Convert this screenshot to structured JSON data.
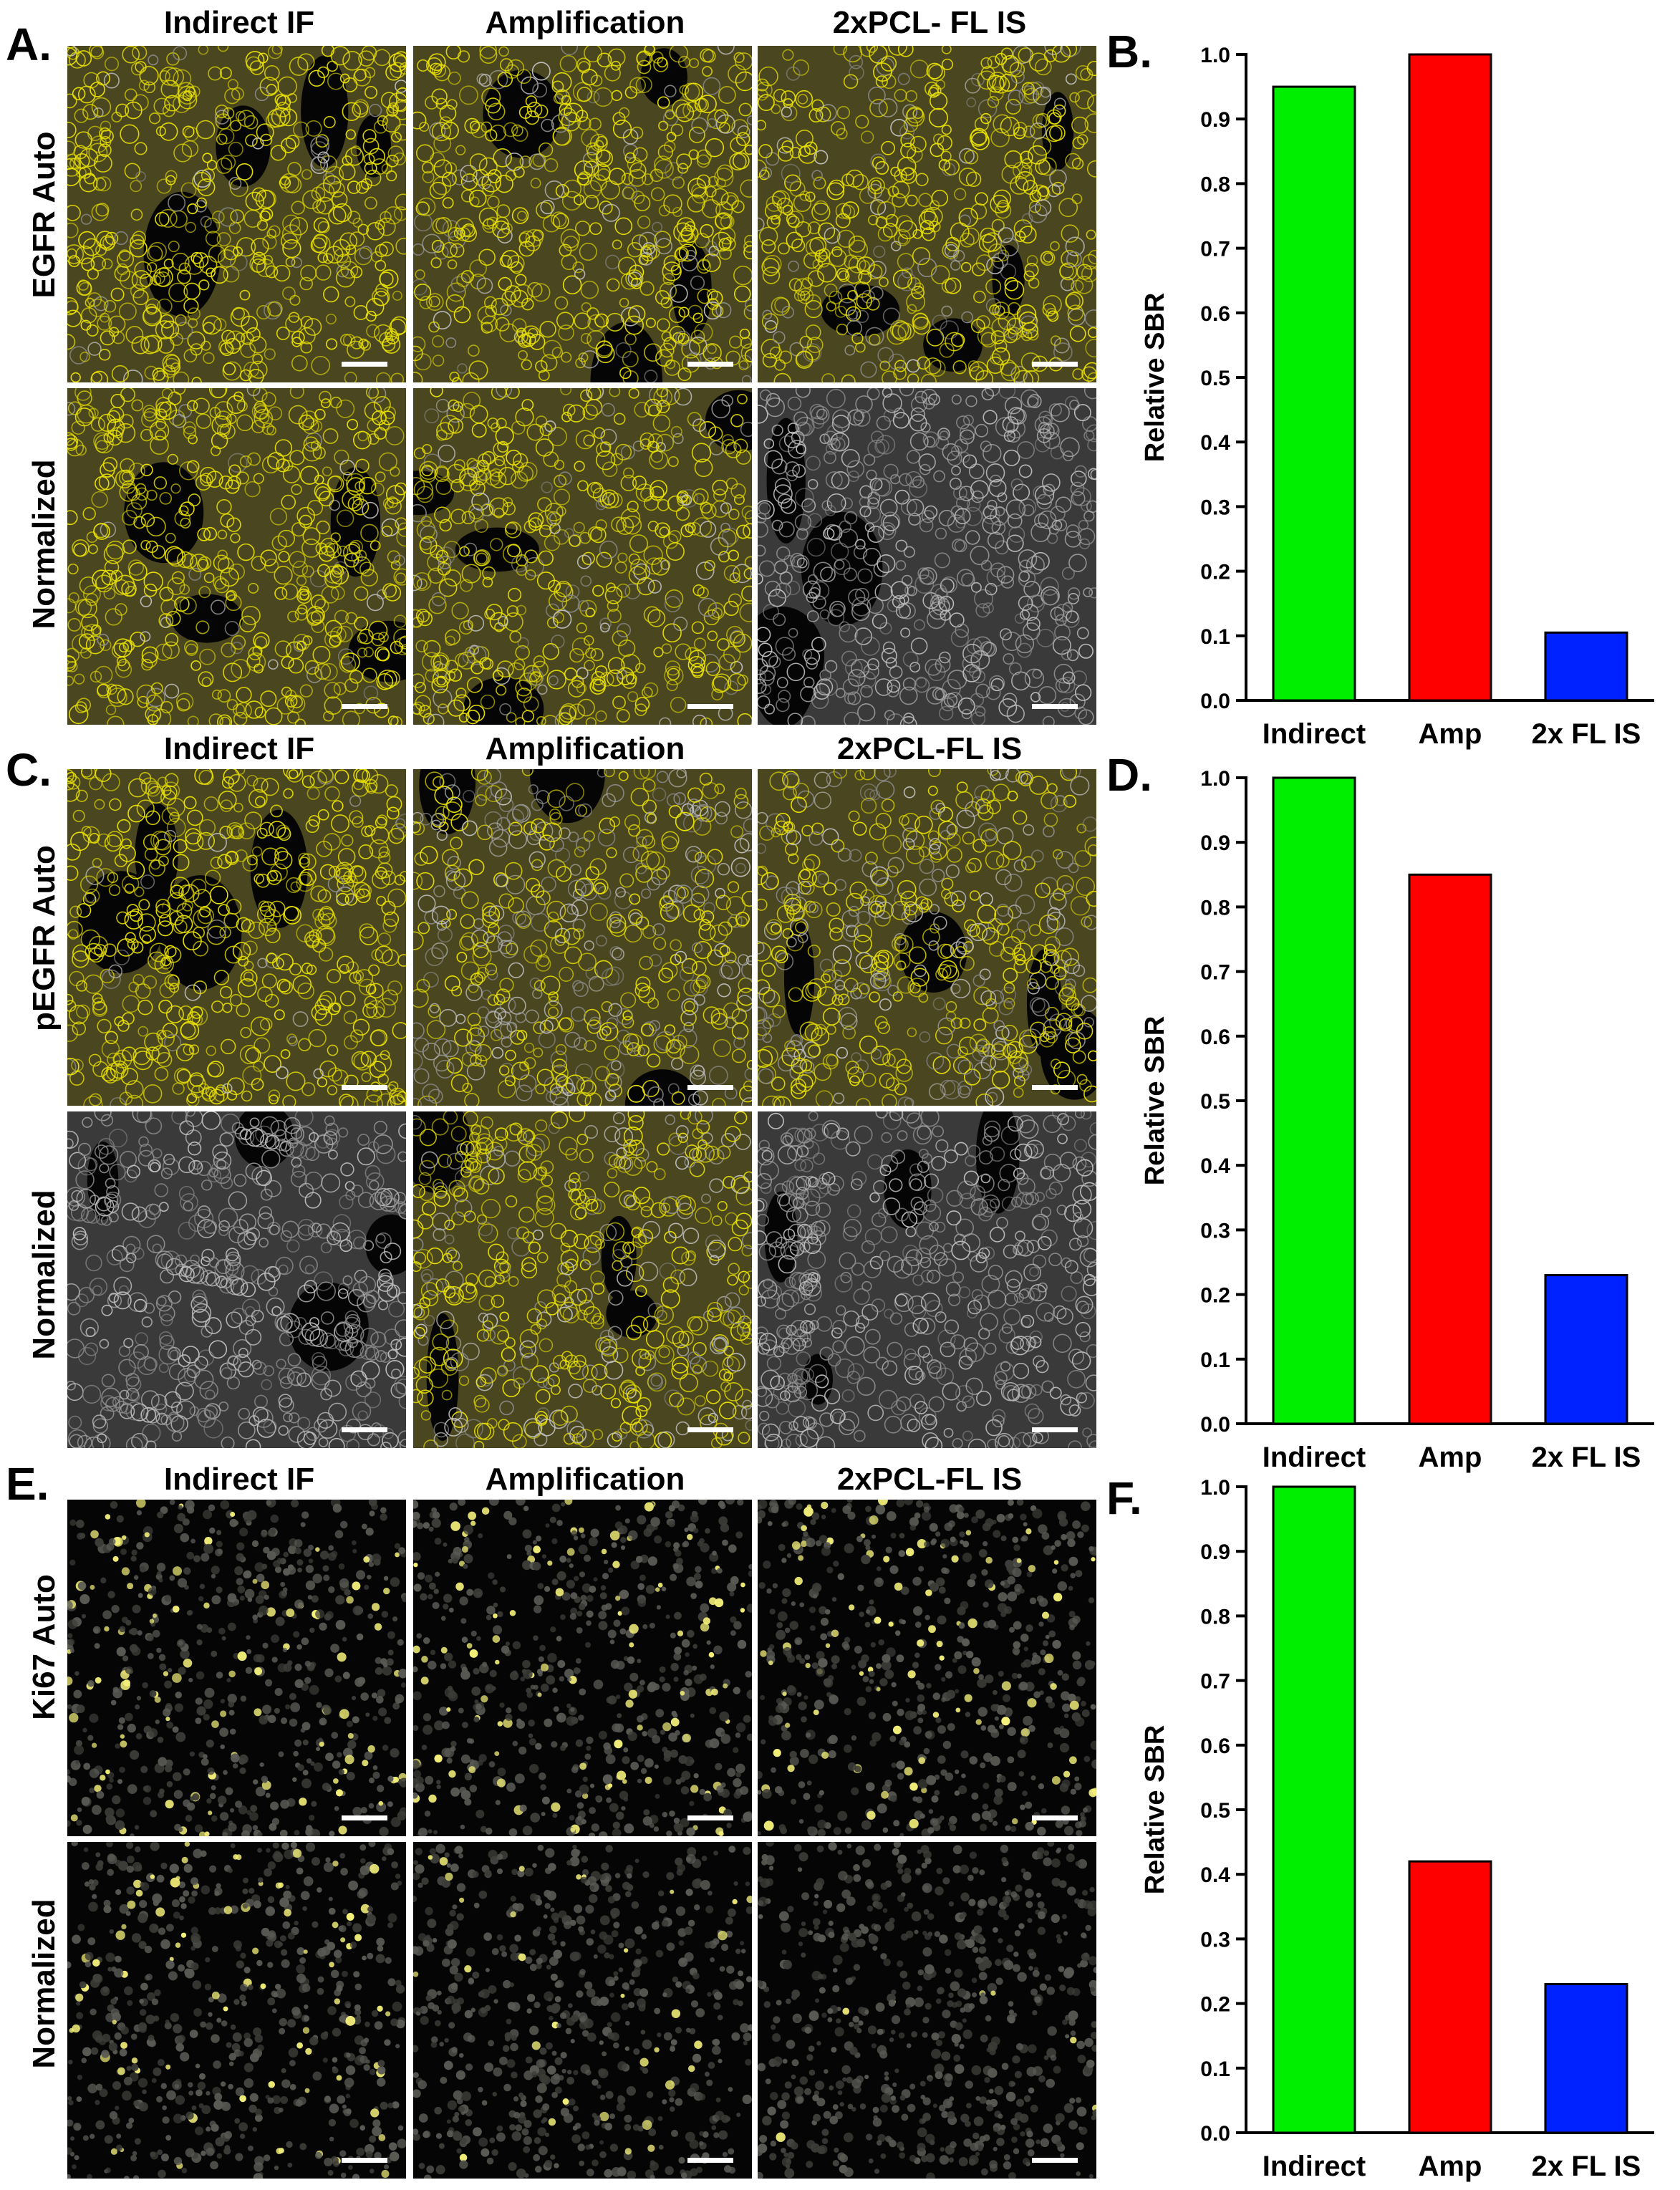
{
  "panel_letters": [
    "A.",
    "B.",
    "C.",
    "D.",
    "E.",
    "F."
  ],
  "column_titles": {
    "A": [
      "Indirect IF",
      "Amplification",
      "2xPCL- FL IS"
    ],
    "C": [
      "Indirect IF",
      "Amplification",
      "2xPCL-FL IS"
    ],
    "E": [
      "Indirect IF",
      "Amplification",
      "2xPCL-FL IS"
    ]
  },
  "row_labels": {
    "A": [
      "EGFR Auto",
      "Normalized"
    ],
    "C": [
      "pEGFR Auto",
      "Normalized"
    ],
    "E": [
      "Ki67 Auto",
      "Normalized"
    ]
  },
  "micrographs": {
    "A": [
      [
        {
          "style": "membrane",
          "tint": 0.95,
          "seed": 11
        },
        {
          "style": "membrane",
          "tint": 0.85,
          "seed": 12
        },
        {
          "style": "membrane",
          "tint": 0.8,
          "seed": 13
        }
      ],
      [
        {
          "style": "membrane",
          "tint": 0.95,
          "seed": 14
        },
        {
          "style": "membrane",
          "tint": 0.8,
          "seed": 15
        },
        {
          "style": "membrane",
          "tint": 0.0,
          "seed": 16
        }
      ]
    ],
    "C": [
      [
        {
          "style": "membrane",
          "tint": 0.95,
          "seed": 21
        },
        {
          "style": "membrane",
          "tint": 0.55,
          "seed": 22
        },
        {
          "style": "membrane",
          "tint": 0.6,
          "seed": 23
        }
      ],
      [
        {
          "style": "membrane",
          "tint": 0.0,
          "seed": 24
        },
        {
          "style": "membrane",
          "tint": 0.7,
          "seed": 25
        },
        {
          "style": "membrane",
          "tint": 0.0,
          "seed": 26
        }
      ]
    ],
    "E": [
      [
        {
          "style": "nuclei",
          "tint": 0.55,
          "seed": 31
        },
        {
          "style": "nuclei",
          "tint": 0.5,
          "seed": 32
        },
        {
          "style": "nuclei",
          "tint": 0.5,
          "seed": 33
        }
      ],
      [
        {
          "style": "nuclei",
          "tint": 0.5,
          "seed": 34
        },
        {
          "style": "nuclei",
          "tint": 0.25,
          "seed": 35
        },
        {
          "style": "nuclei",
          "tint": 0.05,
          "seed": 36
        }
      ]
    ]
  },
  "colors": {
    "indirect": "#00ee00",
    "amp": "#ff0000",
    "fl_is": "#0022ff",
    "stain_yellow": "#e8e000"
  },
  "chart_data": [
    {
      "panel": "B",
      "type": "bar",
      "categories": [
        "Indirect",
        "Amp",
        "2x FL IS"
      ],
      "values": [
        0.95,
        1.0,
        0.105
      ],
      "ylabel": "Relative SBR",
      "ylim": [
        0,
        1.0
      ],
      "yticks": [
        "0.0",
        "0.1",
        "0.2",
        "0.3",
        "0.4",
        "0.5",
        "0.6",
        "0.7",
        "0.8",
        "0.9",
        "1.0"
      ]
    },
    {
      "panel": "D",
      "type": "bar",
      "categories": [
        "Indirect",
        "Amp",
        "2x FL IS"
      ],
      "values": [
        1.0,
        0.85,
        0.23
      ],
      "ylabel": "Relative SBR",
      "ylim": [
        0,
        1.0
      ],
      "yticks": [
        "0.0",
        "0.1",
        "0.2",
        "0.3",
        "0.4",
        "0.5",
        "0.6",
        "0.7",
        "0.8",
        "0.9",
        "1.0"
      ]
    },
    {
      "panel": "F",
      "type": "bar",
      "categories": [
        "Indirect",
        "Amp",
        "2x FL IS"
      ],
      "values": [
        1.0,
        0.42,
        0.23
      ],
      "ylabel": "Relative SBR",
      "ylim": [
        0,
        1.0
      ],
      "yticks": [
        "0.0",
        "0.1",
        "0.2",
        "0.3",
        "0.4",
        "0.5",
        "0.6",
        "0.7",
        "0.8",
        "0.9",
        "1.0"
      ]
    }
  ]
}
